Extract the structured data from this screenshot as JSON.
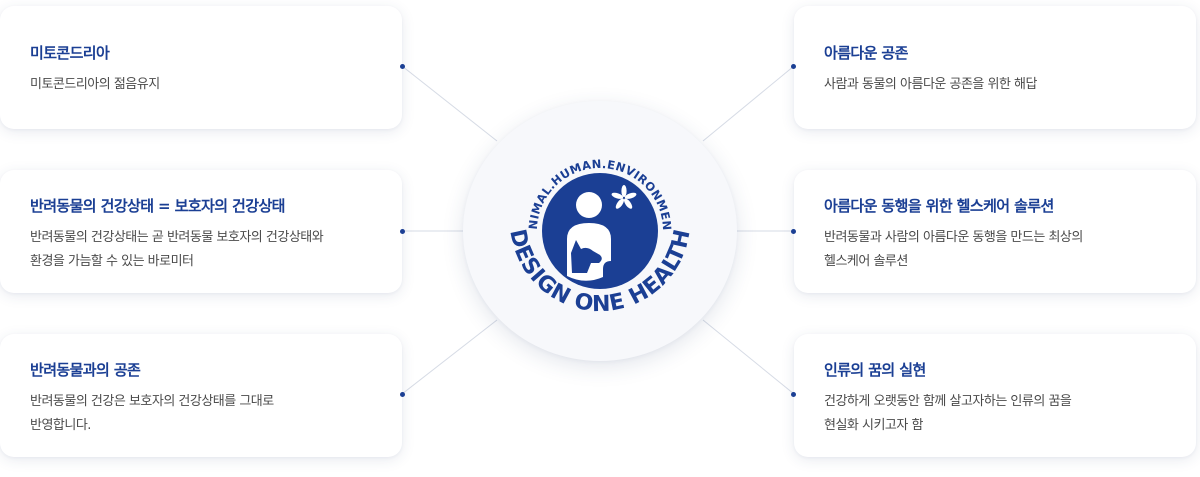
{
  "logo": {
    "ring_top_text": "ANIMAL.HUMAN.ENVIRONMENT",
    "ring_bottom_text": "DESIGN ONE HEALTH",
    "brand_color": "#1b3f94"
  },
  "colors": {
    "title": "#1b3f94",
    "body_text": "#4a4a4a",
    "connector": "#d6dbe5",
    "dot": "#1b3f94"
  },
  "left_cards": [
    {
      "title": "미토콘드리아",
      "desc": "미토콘드리아의 젊음유지"
    },
    {
      "title": "반려동물의 건강상태 = 보호자의 건강상태",
      "desc": "반려동물의 건강상태는 곧 반려동물 보호자의 건강상태와\n환경을 가늠할 수 있는 바로미터"
    },
    {
      "title": "반려동물과의 공존",
      "desc": "반려동물의 건강은 보호자의 건강상태를 그대로\n반영합니다."
    }
  ],
  "right_cards": [
    {
      "title": "아름다운 공존",
      "desc": "사람과 동물의 아름다운 공존을 위한 해답"
    },
    {
      "title": "아름다운 동행을 위한 헬스케어 솔루션",
      "desc": "반려동물과 사람의 아름다운 동행을 만드는 최상의\n헬스케어 솔루션"
    },
    {
      "title": "인류의 꿈의 실현",
      "desc": "건강하게 오랫동안 함께 살고자하는 인류의 꿈을\n현실화 시키고자 함"
    }
  ]
}
